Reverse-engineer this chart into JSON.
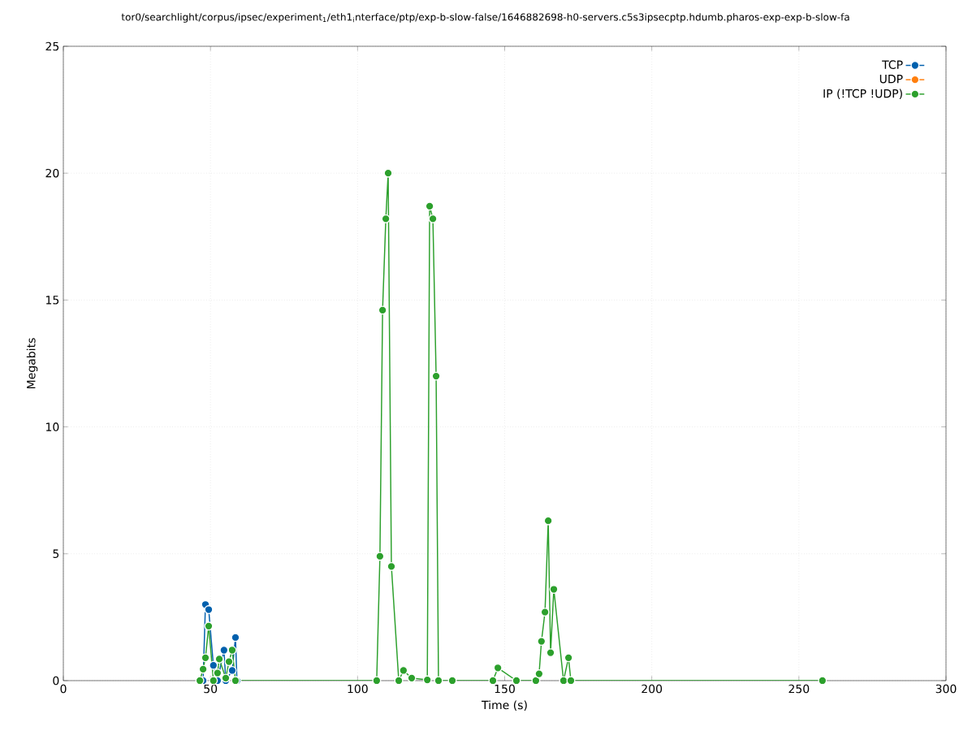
{
  "chart_data": {
    "type": "line",
    "title": "tor0/searchlight/corpus/ipsec/experiment$_{1}$/eth1$_{i}$nterface/ptp/exp-b-slow-false/1646882698-h0-servers.c5s3ipsecptp.hdumb.pharos-exp-exp-b-slow-fa",
    "xlabel": "Time (s)",
    "ylabel": "Megabits",
    "xlim": [
      0,
      300
    ],
    "ylim": [
      0,
      25
    ],
    "xticks": [
      0,
      50,
      100,
      150,
      200,
      250,
      300
    ],
    "yticks": [
      0,
      5,
      10,
      15,
      20,
      25
    ],
    "grid": true,
    "legend": "top right",
    "marker": "circle",
    "line_style": "solid",
    "series": [
      {
        "name": "TCP",
        "color": "#0060ad",
        "x": [
          47.5,
          48.3,
          49.4,
          51.0,
          52.4,
          54.6,
          55.2,
          57.4,
          58.5,
          59.0
        ],
        "values": [
          0,
          3.0,
          2.8,
          0.6,
          0,
          1.2,
          0,
          0.4,
          1.7,
          0
        ]
      },
      {
        "name": "UDP",
        "color": "#ff7f0e"
      },
      {
        "name": "IP (!TCP  !UDP)",
        "color": "#2ca02c",
        "x": [
          46.4,
          47.5,
          48.3,
          49.4,
          51.0,
          52.4,
          53.0,
          55.2,
          56.3,
          57.4,
          58.5,
          106.5,
          107.6,
          108.5,
          109.6,
          110.4,
          111.5,
          114.0,
          115.6,
          118.4,
          123.7,
          124.5,
          125.6,
          126.7,
          127.5,
          132.2,
          146.0,
          147.7,
          154.0,
          160.6,
          161.7,
          162.5,
          163.7,
          164.8,
          165.6,
          166.7,
          170.0,
          171.7,
          172.5,
          258.0
        ],
        "values": [
          0,
          0.45,
          0.9,
          2.15,
          0,
          0.3,
          0.85,
          0.1,
          0.75,
          1.2,
          0,
          0,
          4.9,
          14.6,
          18.2,
          20.0,
          4.5,
          0,
          0.4,
          0.1,
          0.03,
          18.7,
          18.2,
          12.0,
          0,
          0,
          0,
          0.5,
          0,
          0,
          0.27,
          1.55,
          2.7,
          6.3,
          1.1,
          3.6,
          0,
          0.9,
          0,
          0
        ]
      }
    ]
  }
}
